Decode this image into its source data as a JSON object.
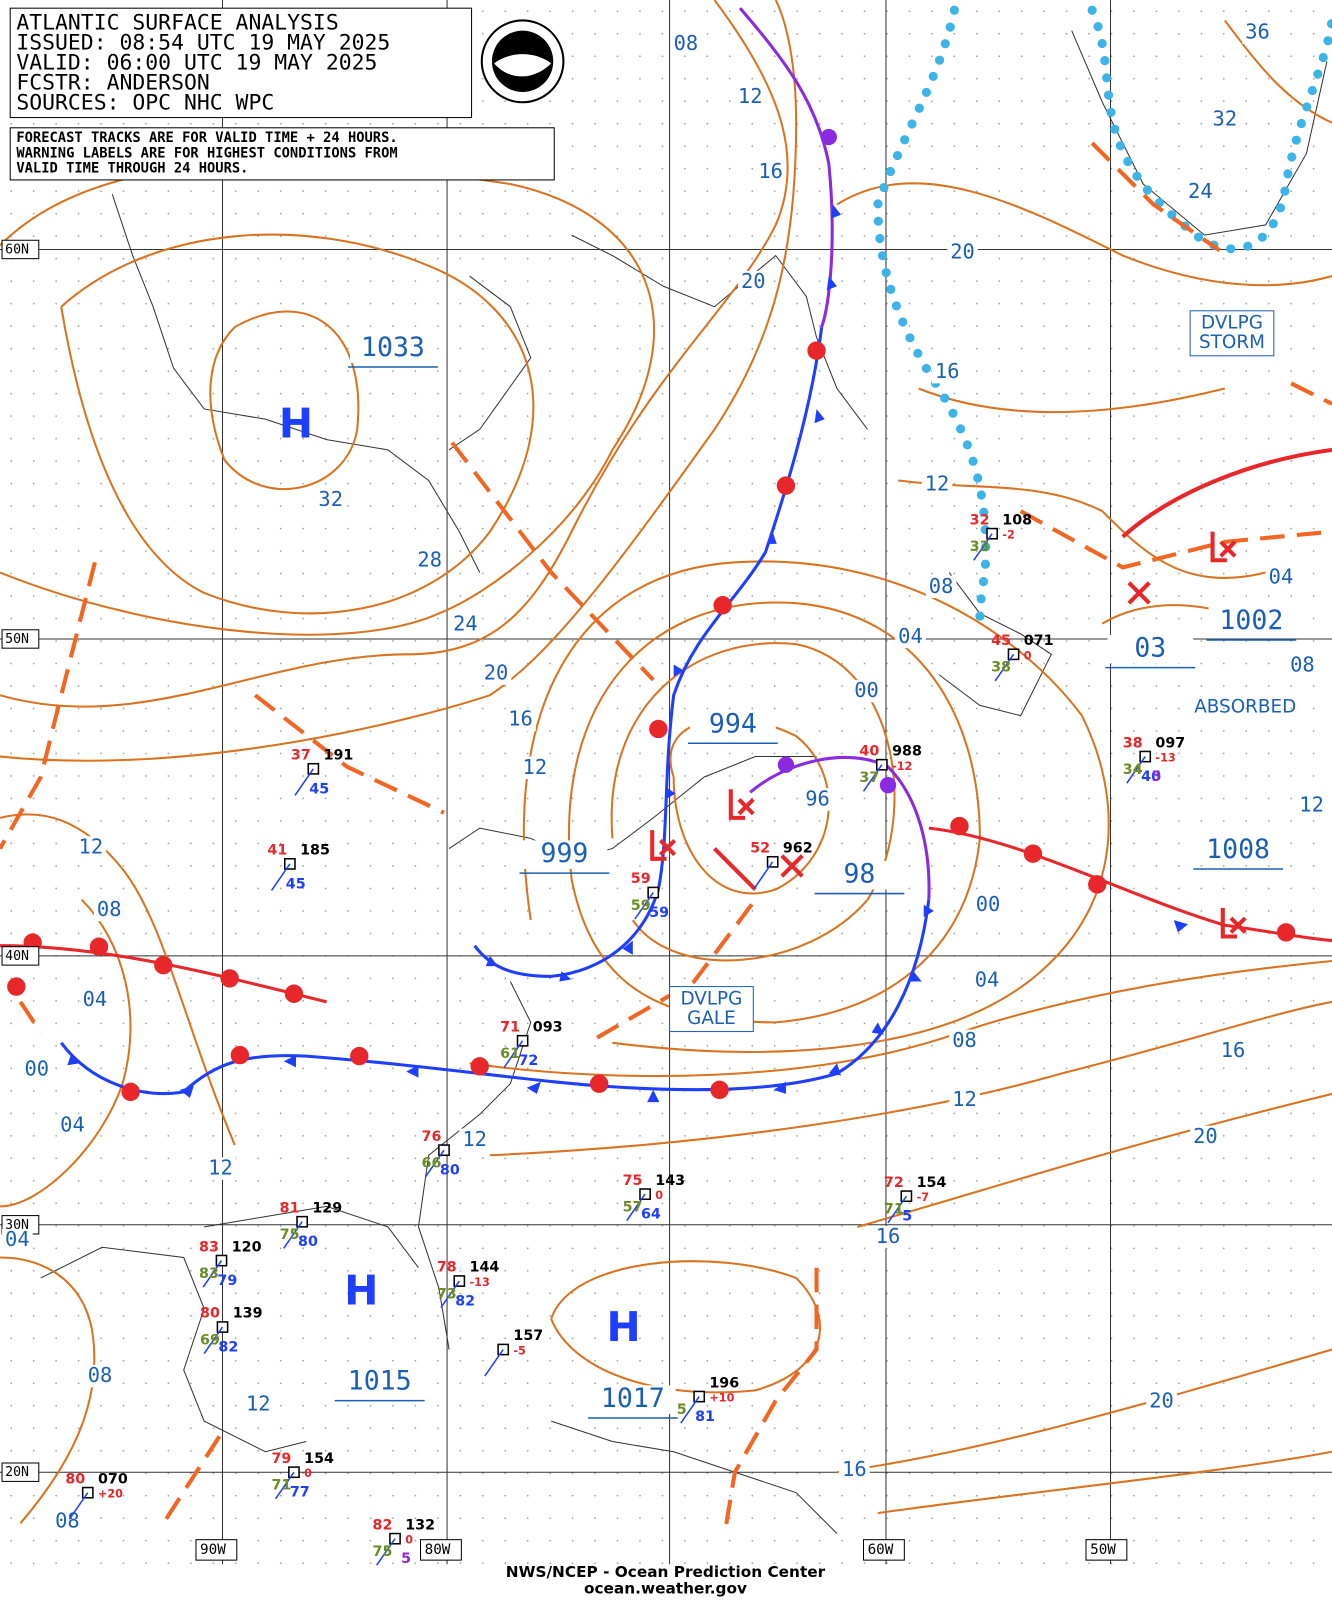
{
  "header": {
    "lines": [
      "ATLANTIC SURFACE ANALYSIS",
      "ISSUED: 08:54 UTC 19 MAY 2025",
      "VALID:  06:00 UTC 19 MAY 2025",
      "FCSTR:  ANDERSON",
      "SOURCES: OPC NHC WPC"
    ]
  },
  "notice": {
    "lines": [
      "FORECAST TRACKS ARE FOR VALID TIME + 24 HOURS.",
      "WARNING LABELS ARE FOR HIGHEST CONDITIONS FROM",
      "VALID TIME THROUGH 24 HOURS."
    ]
  },
  "latitude_labels": [
    "60N",
    "50N",
    "40N",
    "30N",
    "20N"
  ],
  "longitude_labels": [
    "90W",
    "80W",
    "60W",
    "50W"
  ],
  "isobar_labels": [
    "08",
    "12",
    "16",
    "20",
    "20",
    "16",
    "12",
    "08",
    "04",
    "00",
    "36",
    "32",
    "24",
    "04",
    "08",
    "12",
    "32",
    "28",
    "24",
    "20",
    "16",
    "12",
    "96",
    "00",
    "04",
    "08",
    "12",
    "16",
    "20",
    "12",
    "08",
    "04",
    "00",
    "04",
    "12",
    "04",
    "08",
    "12",
    "12",
    "16",
    "16",
    "20",
    "08"
  ],
  "centers": [
    {
      "symbol": "H",
      "pressure": "1033"
    },
    {
      "symbol": "H",
      "pressure": "1015"
    },
    {
      "symbol": "H",
      "pressure": "1017"
    },
    {
      "pressure": "994"
    },
    {
      "pressure": "999"
    },
    {
      "pressure": "98"
    },
    {
      "pressure": "03"
    },
    {
      "pressure": "1002"
    },
    {
      "pressure": "1008"
    }
  ],
  "warnings": [
    {
      "lines": [
        "DVLPG",
        "STORM"
      ]
    },
    {
      "lines": [
        "DVLPG",
        "GALE"
      ]
    },
    {
      "lines": [
        "ABSORBED"
      ]
    }
  ],
  "stations": [
    {
      "pressure": "108",
      "temp": "32",
      "dewpoint": "33",
      "tendency": "-2"
    },
    {
      "pressure": "071",
      "temp": "45",
      "dewpoint": "38",
      "tendency": "0"
    },
    {
      "pressure": "097",
      "temp": "38",
      "dewpoint": "34",
      "wave": "40",
      "period": "5",
      "tendency": "-13"
    },
    {
      "pressure": "988",
      "temp": "40",
      "dewpoint": "37",
      "tendency": "-12"
    },
    {
      "pressure": "962",
      "temp": "52"
    },
    {
      "pressure": "191",
      "temp": "37",
      "wave": "45"
    },
    {
      "pressure": "185",
      "temp": "41",
      "wave": "45"
    },
    {
      "temp": "59",
      "dewpoint": "59",
      "wave": "59"
    },
    {
      "pressure": "093",
      "temp": "71",
      "dewpoint": "61",
      "wave": "72"
    },
    {
      "temp": "76",
      "dewpoint": "66",
      "wave": "80"
    },
    {
      "pressure": "143",
      "temp": "75",
      "dewpoint": "57",
      "wave": "64",
      "tendency": "0"
    },
    {
      "pressure": "154",
      "temp": "72",
      "dewpoint": "71",
      "wave": "5",
      "tendency": "-7"
    },
    {
      "pressure": "129",
      "temp": "81",
      "dewpoint": "75",
      "wave": "80"
    },
    {
      "pressure": "120",
      "temp": "83",
      "dewpoint": "83",
      "wave": "79"
    },
    {
      "pressure": "139",
      "temp": "80",
      "dewpoint": "69",
      "wave": "82"
    },
    {
      "pressure": "144",
      "temp": "78",
      "dewpoint": "73",
      "wave": "82",
      "tendency": "-13"
    },
    {
      "pressure": "157",
      "tendency": "-5"
    },
    {
      "pressure": "196",
      "dewpoint": "5",
      "wave": "81",
      "tendency": "+10"
    },
    {
      "pressure": "154",
      "temp": "79",
      "dewpoint": "71",
      "wave": "77",
      "tendency": "0"
    },
    {
      "pressure": "070",
      "temp": "80",
      "tendency": "+20"
    },
    {
      "pressure": "132",
      "temp": "82",
      "dewpoint": "75",
      "period": "5",
      "tendency": "0"
    }
  ],
  "footer": {
    "lines": [
      "NWS/NCEP - Ocean Prediction Center",
      "ocean.weather.gov"
    ]
  }
}
